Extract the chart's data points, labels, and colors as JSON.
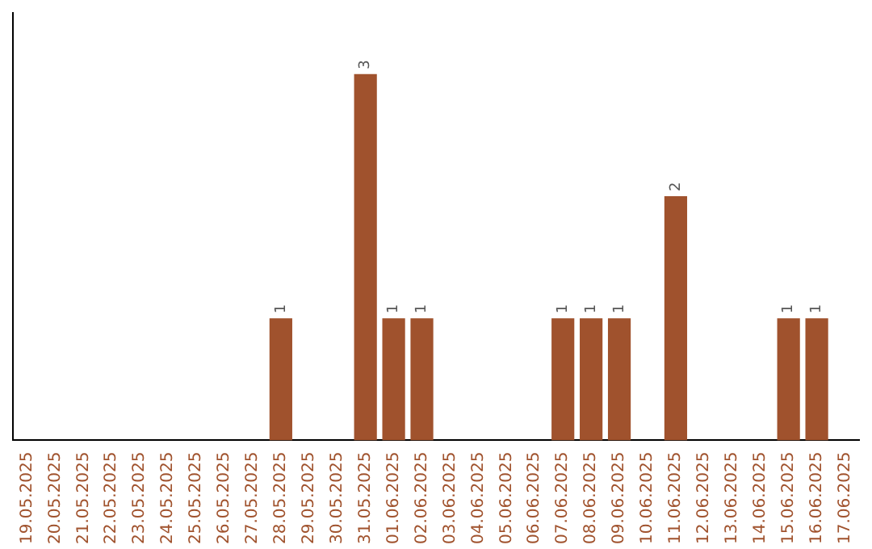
{
  "chart_data": {
    "type": "bar",
    "categories": [
      "19.05.2025",
      "20.05.2025",
      "21.05.2025",
      "22.05.2025",
      "23.05.2025",
      "24.05.2025",
      "25.05.2025",
      "26.05.2025",
      "27.05.2025",
      "28.05.2025",
      "29.05.2025",
      "30.05.2025",
      "31.05.2025",
      "01.06.2025",
      "02.06.2025",
      "03.06.2025",
      "04.06.2025",
      "05.06.2025",
      "06.06.2025",
      "07.06.2025",
      "08.06.2025",
      "09.06.2025",
      "10.06.2025",
      "11.06.2025",
      "12.06.2025",
      "13.06.2025",
      "14.06.2025",
      "15.06.2025",
      "16.06.2025",
      "17.06.2025"
    ],
    "values": [
      0,
      0,
      0,
      0,
      0,
      0,
      0,
      0,
      0,
      1,
      0,
      0,
      3,
      1,
      1,
      0,
      0,
      0,
      0,
      1,
      1,
      1,
      0,
      2,
      0,
      0,
      0,
      1,
      1,
      0
    ],
    "value_labels": [
      null,
      null,
      null,
      null,
      null,
      null,
      null,
      null,
      null,
      "1",
      null,
      null,
      "3",
      "1",
      "1",
      null,
      null,
      null,
      null,
      "1",
      "1",
      "1",
      null,
      "2",
      null,
      null,
      null,
      "1",
      "1",
      null
    ],
    "color": "#a0522d",
    "grid": false,
    "legend": false,
    "tick_labels": "x"
  }
}
